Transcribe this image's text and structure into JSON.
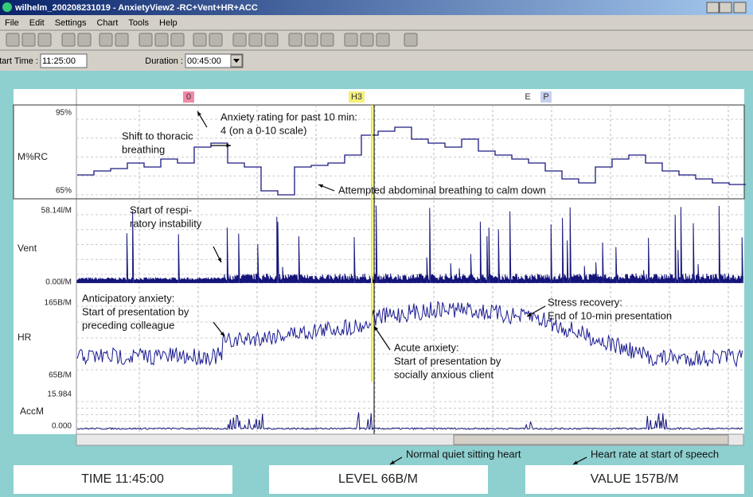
{
  "window": {
    "title": "wilhelm_200208231019 - AnxietyView2 -RC+Vent+HR+ACC"
  },
  "menu": [
    "File",
    "Edit",
    "Settings",
    "Chart",
    "Tools",
    "Help"
  ],
  "toolbar": {
    "start_time_label": "Start Time :",
    "start_time": "11:25:00",
    "duration_label": "Duration :",
    "duration": "00:45:00"
  },
  "markers": [
    "0",
    "H3",
    "E",
    "P"
  ],
  "panels": [
    {
      "name": "M%RC",
      "top": "95%",
      "bottom": "65%"
    },
    {
      "name": "Vent",
      "top": "58.14l/M",
      "bottom": "0.00l/M"
    },
    {
      "name": "HR",
      "top": "165B/M",
      "bottom": "65B/M"
    },
    {
      "name": "AccM",
      "top": "15.984",
      "bottom": "0.000"
    }
  ],
  "annotations": [
    [
      "Anxiety rating for past 10 min:",
      "4 (on a 0-10 scale)"
    ],
    [
      "Shift to thoracic",
      "breathing"
    ],
    [
      "Attempted abdominal breathing to calm down"
    ],
    [
      "Start of respi-",
      "ratory instability"
    ],
    [
      "Anticipatory anxiety:",
      "Start of presentation by",
      "preceding colleague"
    ],
    [
      "Stress recovery:",
      "End of 10-min presentation"
    ],
    [
      "Acute anxiety:",
      "Start of presentation by",
      "socially anxious client"
    ],
    [
      "Normal quiet sitting heart"
    ],
    [
      "Heart rate at start of speech"
    ]
  ],
  "status": [
    "TIME 11:45:00",
    "LEVEL 66B/M",
    "VALUE 157B/M"
  ]
}
